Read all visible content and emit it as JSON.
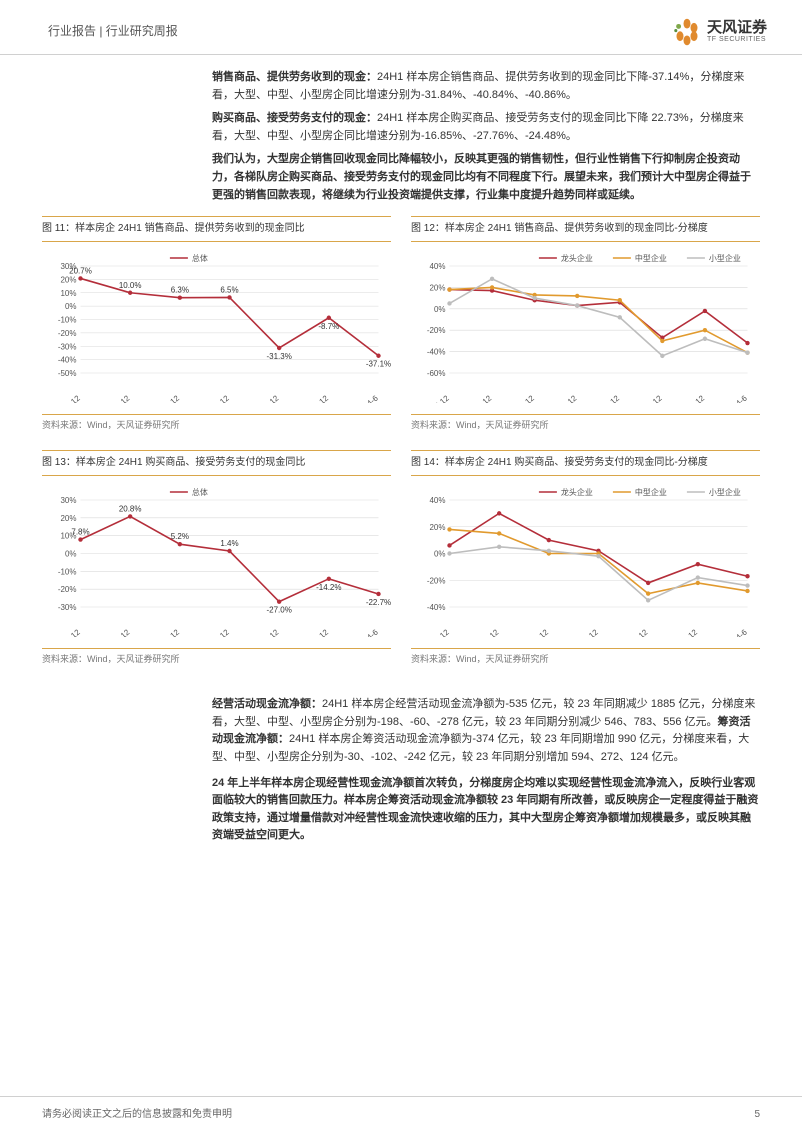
{
  "header": {
    "left": "行业报告 | 行业研究周报",
    "logo_cn": "天风证券",
    "logo_en": "TF SECURITIES"
  },
  "logo_colors": {
    "petal": "#e08a2e",
    "dot1": "#7fa84a",
    "dot2": "#5a8f3d"
  },
  "para1": {
    "lead1": "销售商品、提供劳务收到的现金：",
    "body1": "24H1 样本房企销售商品、提供劳务收到的现金同比下降-37.14%，分梯度来看，大型、中型、小型房企同比增速分别为-31.84%、-40.84%、-40.86%。",
    "lead2": "购买商品、接受劳务支付的现金：",
    "body2": "24H1 样本房企购买商品、接受劳务支付的现金同比下降 22.73%，分梯度来看，大型、中型、小型房企同比增速分别为-16.85%、-27.76%、-24.48%。"
  },
  "para2": "我们认为，大型房企销售回收现金同比降幅较小，反映其更强的销售韧性，但行业性销售下行抑制房企投资动力，各梯队房企购买商品、接受劳务支付的现金同比均有不同程度下行。展望未来，我们预计大中型房企得益于更强的销售回款表现，将继续为行业投资端提供支撑，行业集中度提升趋势同样或延续。",
  "charts": {
    "c11": {
      "title": "图 11：样本房企 24H1 销售商品、提供劳务收到的现金同比",
      "source": "资料来源：Wind，天风证券研究所",
      "legend": [
        "总体"
      ],
      "categories": [
        "2018-12",
        "2019-12",
        "2020-12",
        "2021-12",
        "2022-12",
        "2023-12",
        "2024-6"
      ],
      "series": [
        {
          "name": "总体",
          "color": "#b42e3a",
          "values": [
            20.7,
            10.0,
            6.3,
            6.5,
            -31.3,
            -8.7,
            -37.1
          ],
          "labels": [
            "20.7%",
            "10.0%",
            "6.3%",
            "6.5%",
            "-31.3%",
            "-8.7%",
            "-37.1%"
          ]
        }
      ],
      "ylim": [
        -50,
        30
      ],
      "ystep": 10,
      "grid_color": "#d9d9d9",
      "bg": "#ffffff",
      "axis_fontsize": 8,
      "label_fontsize": 8
    },
    "c12": {
      "title": "图 12：样本房企 24H1 销售商品、提供劳务收到的现金同比-分梯度",
      "source": "资料来源：Wind，天风证券研究所",
      "legend": [
        "龙头企业",
        "中型企业",
        "小型企业"
      ],
      "categories": [
        "2017-12",
        "2018-12",
        "2019-12",
        "2020-12",
        "2021-12",
        "2022-12",
        "2023-12",
        "2024-6"
      ],
      "series": [
        {
          "name": "龙头企业",
          "color": "#b42e3a",
          "values": [
            18,
            17,
            8,
            3,
            6,
            -27,
            -2,
            -32
          ]
        },
        {
          "name": "中型企业",
          "color": "#e19a2e",
          "values": [
            18,
            20,
            13,
            12,
            8,
            -30,
            -20,
            -41
          ]
        },
        {
          "name": "小型企业",
          "color": "#bdbdbd",
          "values": [
            5,
            28,
            10,
            3,
            -8,
            -44,
            -28,
            -41
          ]
        }
      ],
      "ylim": [
        -60,
        40
      ],
      "ystep": 20,
      "grid_color": "#d9d9d9",
      "bg": "#ffffff",
      "axis_fontsize": 8
    },
    "c13": {
      "title": "图 13：样本房企 24H1 购买商品、接受劳务支付的现金同比",
      "source": "资料来源：Wind，天风证券研究所",
      "legend": [
        "总体"
      ],
      "categories": [
        "2018-12",
        "2019-12",
        "2020-12",
        "2021-12",
        "2022-12",
        "2023-12",
        "2024-6"
      ],
      "series": [
        {
          "name": "总体",
          "color": "#b42e3a",
          "values": [
            7.8,
            20.8,
            5.2,
            1.4,
            -27.0,
            -14.2,
            -22.7
          ],
          "labels": [
            "7.8%",
            "20.8%",
            "5.2%",
            "1.4%",
            "-27.0%",
            "-14.2%",
            "-22.7%"
          ]
        }
      ],
      "ylim": [
        -30,
        30
      ],
      "ystep": 10,
      "grid_color": "#d9d9d9",
      "bg": "#ffffff",
      "axis_fontsize": 8,
      "label_fontsize": 8
    },
    "c14": {
      "title": "图 14：样本房企 24H1 购买商品、接受劳务支付的现金同比-分梯度",
      "source": "资料来源：Wind，天风证券研究所",
      "legend": [
        "龙头企业",
        "中型企业",
        "小型企业"
      ],
      "categories": [
        "2018-12",
        "2019-12",
        "2020-12",
        "2021-12",
        "2022-12",
        "2023-12",
        "2024-6"
      ],
      "series": [
        {
          "name": "龙头企业",
          "color": "#b42e3a",
          "values": [
            6,
            30,
            10,
            2,
            -22,
            -8,
            -17
          ]
        },
        {
          "name": "中型企业",
          "color": "#e19a2e",
          "values": [
            18,
            15,
            0,
            0,
            -30,
            -22,
            -28
          ]
        },
        {
          "name": "小型企业",
          "color": "#bdbdbd",
          "values": [
            0,
            5,
            2,
            -2,
            -35,
            -18,
            -24
          ]
        }
      ],
      "ylim": [
        -40,
        40
      ],
      "ystep": 20,
      "grid_color": "#d9d9d9",
      "bg": "#ffffff",
      "axis_fontsize": 8
    }
  },
  "para3": {
    "lead1": "经营活动现金流净额：",
    "body1": "24H1 样本房企经营活动现金流净额为-535 亿元，较 23 年同期减少 1885 亿元，分梯度来看，大型、中型、小型房企分别为-198、-60、-278 亿元，较 23 年同期分别减少 546、783、556 亿元。",
    "lead2": "筹资活动现金流净额：",
    "body2": "24H1 样本房企筹资活动现金流净额为-374 亿元，较 23 年同期增加 990 亿元，分梯度来看，大型、中型、小型房企分别为-30、-102、-242 亿元，较 23 年同期分别增加 594、272、124 亿元。"
  },
  "para4": "24 年上半年样本房企现经营性现金流净额首次转负，分梯度房企均难以实现经营性现金流净流入，反映行业客观面临较大的销售回款压力。样本房企筹资活动现金流净额较 23 年同期有所改善，或反映房企一定程度得益于融资政策支持，通过增量借款对冲经营性现金流快速收缩的压力，其中大型房企筹资净额增加规模最多，或反映其融资端受益空间更大。",
  "footer": {
    "disclaimer": "请务必阅读正文之后的信息披露和免责申明",
    "page": "5"
  }
}
